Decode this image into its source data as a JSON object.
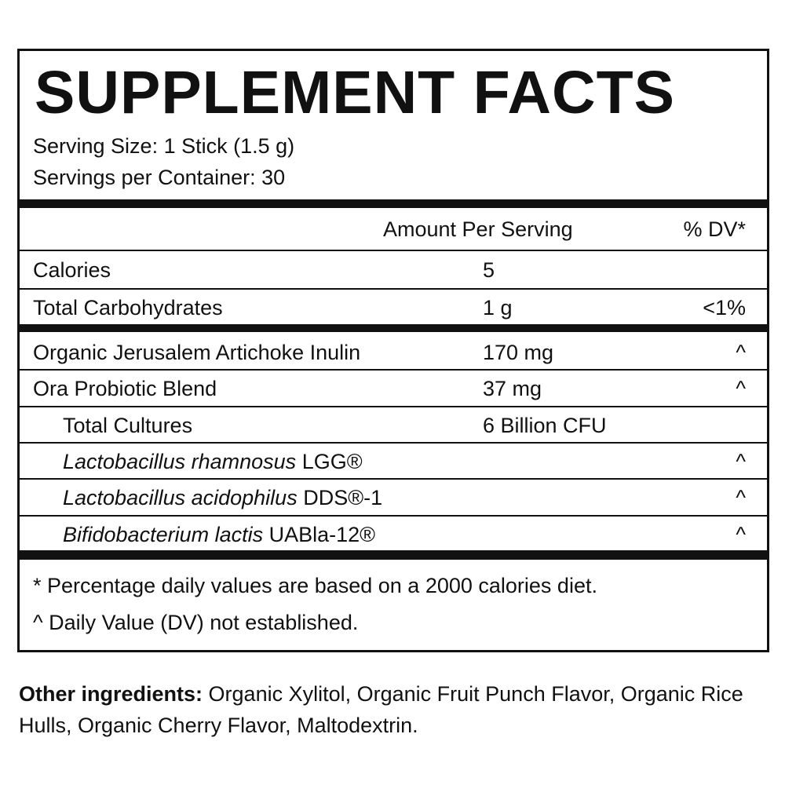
{
  "panel": {
    "title": "SUPPLEMENT FACTS",
    "serving_size": "Serving Size: 1 Stick (1.5 g)",
    "servings_per_container": "Servings per Container: 30",
    "header": {
      "amount": "Amount Per Serving",
      "dv": "% DV*"
    },
    "sections": [
      {
        "rows": [
          {
            "name": "Calories",
            "amount": "5"
          },
          {
            "name": "Total Carbohydrates",
            "amount": "1 g",
            "dv": "<1%"
          }
        ]
      },
      {
        "rows": [
          {
            "name": "Organic Jerusalem Artichoke Inulin",
            "amount": "170 mg",
            "dv": "^"
          },
          {
            "name": "Ora Probiotic Blend",
            "amount": "37 mg",
            "dv": "^"
          },
          {
            "name": "Total Cultures",
            "amount": "6 Billion CFU",
            "indent": true
          },
          {
            "italic": "Lactobacillus rhamnosus",
            "name": "LGG®",
            "dv": "^",
            "indent": true
          },
          {
            "italic": "Lactobacillus acidophilus",
            "name": "DDS®-1",
            "dv": "^",
            "indent": true
          },
          {
            "italic": "Bifidobacterium lactis",
            "name": "UABla-12®",
            "dv": "^",
            "indent": true
          }
        ]
      }
    ],
    "footnotes": [
      "* Percentage daily values are based on a 2000 calories diet.",
      "^ Daily Value (DV) not established."
    ]
  },
  "other_ingredients": {
    "label": "Other ingredients:",
    "text": "Organic Xylitol, Organic Fruit Punch Flavor, Organic Rice Hulls, Organic Cherry Flavor, Maltodextrin."
  }
}
